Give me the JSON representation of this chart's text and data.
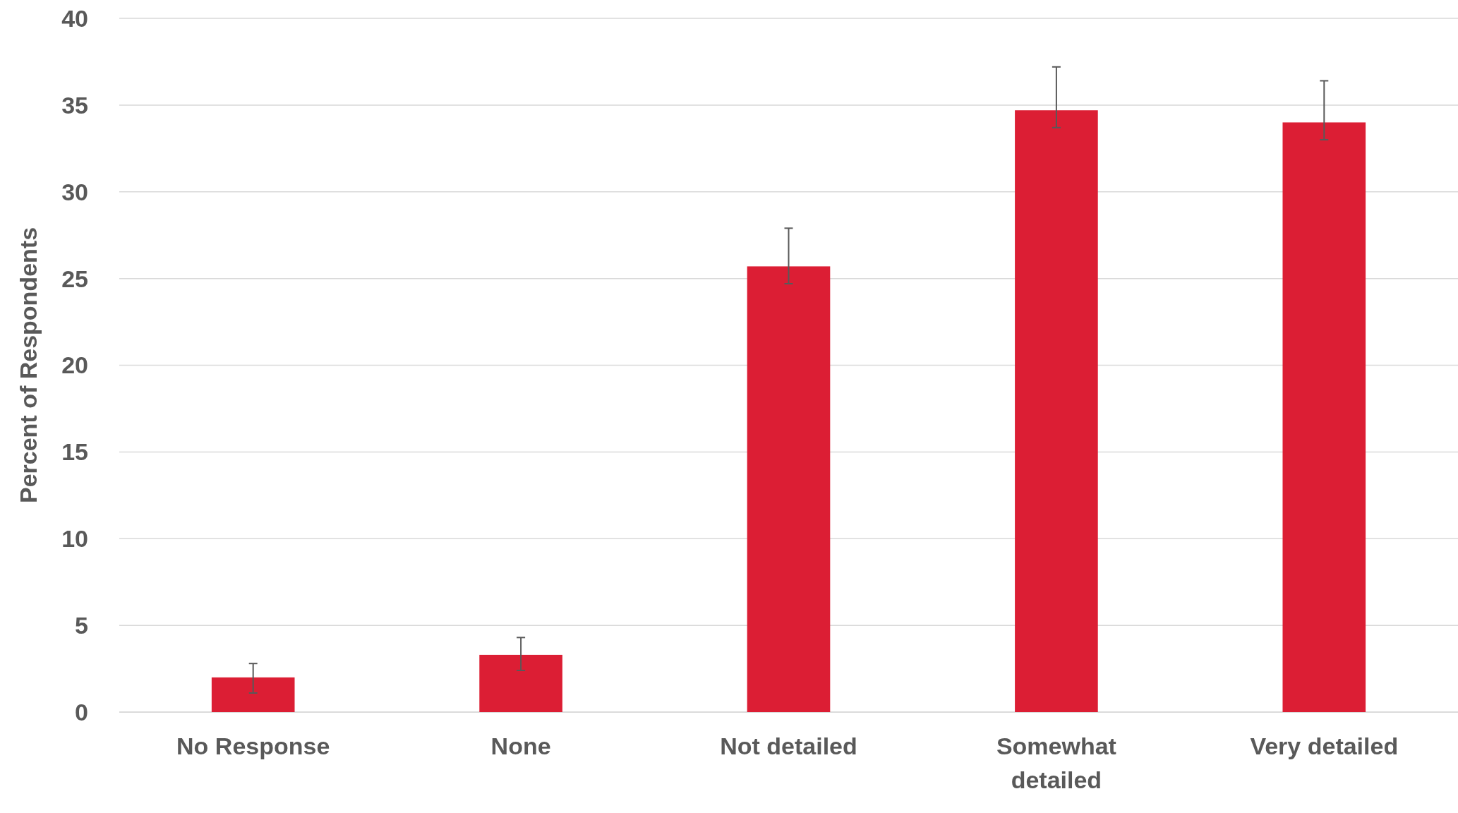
{
  "chart_data": {
    "type": "bar",
    "ylabel": "Percent of Respondents",
    "categories": [
      "No Response",
      "None",
      "Not detailed",
      "Somewhat detailed",
      "Very detailed"
    ],
    "values": [
      2.0,
      3.3,
      25.7,
      34.7,
      34.0
    ],
    "errors": [
      [
        1.1,
        2.8
      ],
      [
        2.4,
        4.3
      ],
      [
        24.7,
        27.9
      ],
      [
        33.7,
        37.2
      ],
      [
        33.0,
        36.4
      ]
    ],
    "color": "#dc1e34",
    "ylim": [
      0,
      40
    ],
    "yticks": [
      0,
      5,
      10,
      15,
      20,
      25,
      30,
      35,
      40
    ],
    "grid": "y"
  }
}
